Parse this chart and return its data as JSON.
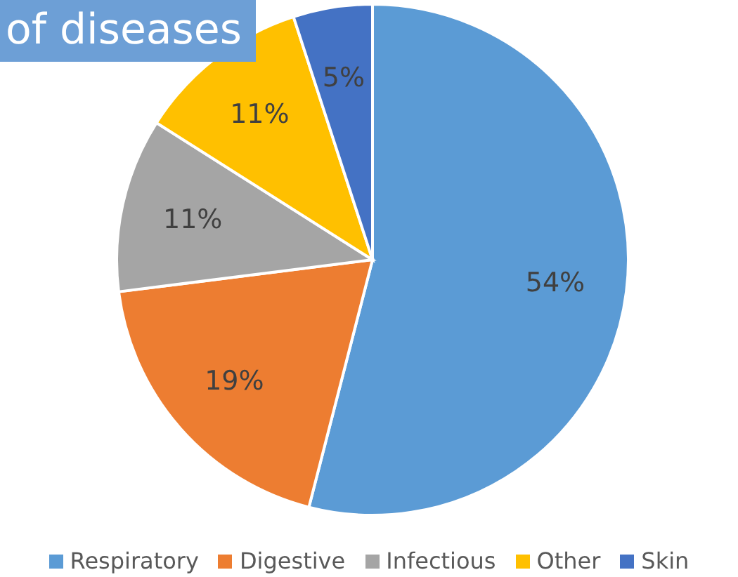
{
  "chart_data": {
    "type": "pie",
    "title": "of diseases",
    "categories": [
      "Respiratory",
      "Digestive",
      "Infectious",
      "Other",
      "Skin"
    ],
    "values": [
      54,
      19,
      11,
      11,
      5
    ],
    "colors": [
      "#5b9bd5",
      "#ed7d31",
      "#a5a5a5",
      "#ffc000",
      "#4472c4"
    ],
    "value_labels": [
      "54%",
      "19%",
      "11%",
      "11%",
      "5%"
    ],
    "legend": "bottom"
  }
}
